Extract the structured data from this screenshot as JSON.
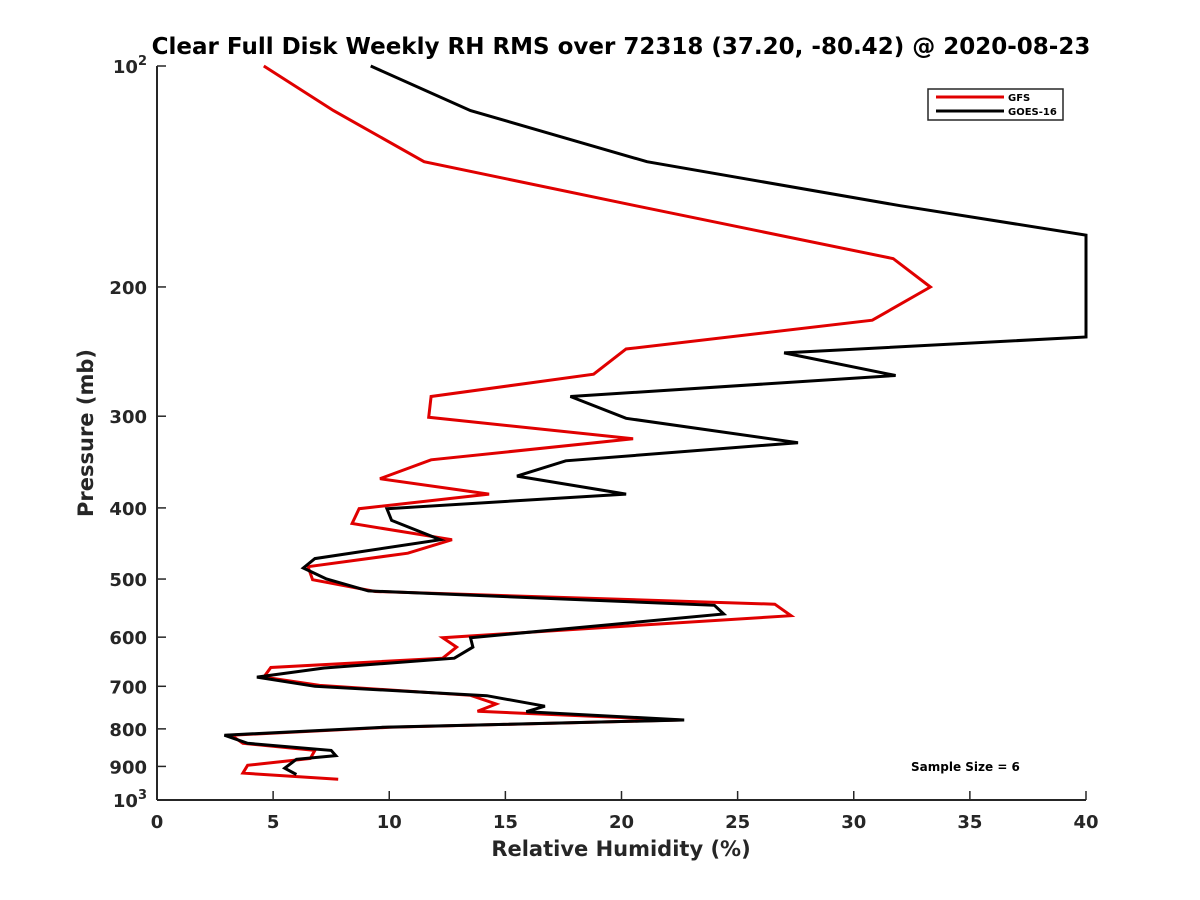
{
  "chart_data": {
    "type": "line",
    "title": "Clear Full Disk Weekly RH RMS over 72318 (37.20, -80.42) @ 2020-08-23",
    "xlabel": "Relative Humidity (%)",
    "ylabel": "Pressure (mb)",
    "xlim": [
      0,
      40
    ],
    "ylim": [
      100,
      1000
    ],
    "y_scale": "log",
    "y_reversed": true,
    "x_ticks": [
      0,
      5,
      10,
      15,
      20,
      25,
      30,
      35,
      40
    ],
    "y_ticks": [
      {
        "value": 100,
        "base": "10",
        "exp": "2"
      },
      {
        "value": 200,
        "label": "200"
      },
      {
        "value": 300,
        "label": "300"
      },
      {
        "value": 400,
        "label": "400"
      },
      {
        "value": 500,
        "label": "500"
      },
      {
        "value": 600,
        "label": "600"
      },
      {
        "value": 700,
        "label": "700"
      },
      {
        "value": 800,
        "label": "800"
      },
      {
        "value": 900,
        "label": "900"
      },
      {
        "value": 1000,
        "base": "10",
        "exp": "3"
      }
    ],
    "grid": false,
    "legend_position": "top-right",
    "annotation": "Sample Size = 6",
    "series": [
      {
        "name": "GFS",
        "color": "#e00000",
        "points": [
          [
            4.6,
            100
          ],
          [
            7.6,
            115
          ],
          [
            11.5,
            135
          ],
          [
            20.6,
            155
          ],
          [
            31.7,
            183
          ],
          [
            33.3,
            200
          ],
          [
            30.8,
            222
          ],
          [
            20.2,
            243
          ],
          [
            18.8,
            263
          ],
          [
            11.8,
            282
          ],
          [
            11.7,
            301
          ],
          [
            20.5,
            322
          ],
          [
            11.8,
            344
          ],
          [
            9.6,
            365
          ],
          [
            14.3,
            383
          ],
          [
            8.7,
            401
          ],
          [
            8.4,
            420
          ],
          [
            12.7,
            442
          ],
          [
            10.8,
            461
          ],
          [
            6.5,
            481
          ],
          [
            6.7,
            501
          ],
          [
            9.4,
            520
          ],
          [
            26.6,
            541
          ],
          [
            27.3,
            561
          ],
          [
            12.3,
            601
          ],
          [
            12.9,
            619
          ],
          [
            12.3,
            641
          ],
          [
            4.9,
            660
          ],
          [
            4.6,
            680
          ],
          [
            7.0,
            698
          ],
          [
            13.5,
            720
          ],
          [
            14.6,
            740
          ],
          [
            13.8,
            757
          ],
          [
            22.5,
            778
          ],
          [
            10.0,
            796
          ],
          [
            3.2,
            816
          ],
          [
            3.7,
            837
          ],
          [
            6.8,
            856
          ],
          [
            6.6,
            878
          ],
          [
            3.9,
            897
          ],
          [
            3.7,
            919
          ],
          [
            7.8,
            937
          ]
        ]
      },
      {
        "name": "GOES-16",
        "color": "#000000",
        "points": [
          [
            9.2,
            100
          ],
          [
            13.5,
            115
          ],
          [
            21.1,
            135
          ],
          [
            32.0,
            155
          ],
          [
            40.0,
            170
          ],
          [
            40.0,
            234
          ],
          [
            27.0,
            246
          ],
          [
            31.8,
            264
          ],
          [
            17.8,
            282
          ],
          [
            20.2,
            302
          ],
          [
            27.6,
            326
          ],
          [
            17.6,
            345
          ],
          [
            15.5,
            362
          ],
          [
            20.2,
            383
          ],
          [
            9.9,
            401
          ],
          [
            10.1,
            416
          ],
          [
            12.2,
            442
          ],
          [
            6.8,
            469
          ],
          [
            6.3,
            483
          ],
          [
            7.3,
            500
          ],
          [
            9.1,
            519
          ],
          [
            24.0,
            543
          ],
          [
            24.4,
            558
          ],
          [
            13.5,
            601
          ],
          [
            13.6,
            619
          ],
          [
            12.8,
            641
          ],
          [
            7.2,
            661
          ],
          [
            4.3,
            680
          ],
          [
            6.8,
            700
          ],
          [
            14.2,
            721
          ],
          [
            16.7,
            745
          ],
          [
            15.9,
            758
          ],
          [
            22.7,
            778
          ],
          [
            9.7,
            796
          ],
          [
            2.9,
            816
          ],
          [
            3.9,
            837
          ],
          [
            7.5,
            856
          ],
          [
            7.7,
            870
          ],
          [
            6.0,
            880
          ],
          [
            5.5,
            905
          ],
          [
            6.0,
            923
          ]
        ]
      }
    ]
  }
}
